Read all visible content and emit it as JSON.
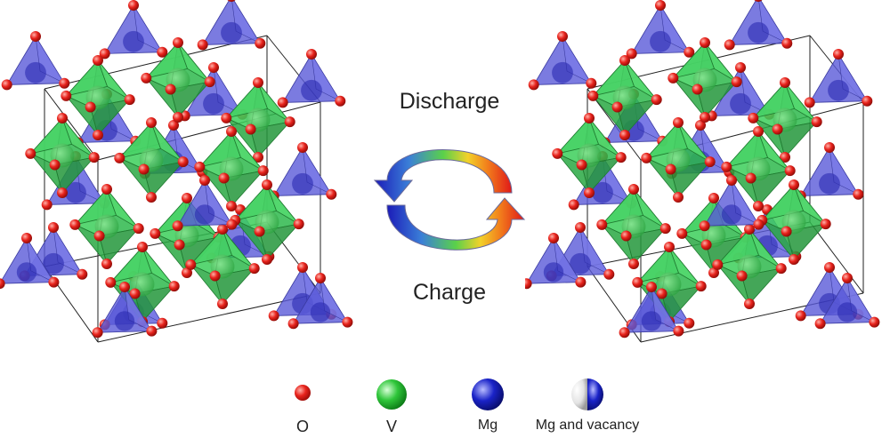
{
  "cycle": {
    "top_label": "Discharge",
    "bottom_label": "Charge"
  },
  "legend": {
    "items": [
      {
        "label": "O",
        "color": "#e8231c"
      },
      {
        "label": "V",
        "color": "#2fc63a"
      },
      {
        "label": "Mg",
        "color": "#1a23c8"
      },
      {
        "label": "Mg and vacancy",
        "color": "#1a23c8"
      }
    ]
  },
  "colors": {
    "oxygen": "#e8231c",
    "vanadium_polyhedra": "#2ecc55",
    "magnesium_polyhedra": "#5a5ad8",
    "arrow_gradient": [
      "#1b1bb8",
      "#2e8fd6",
      "#4fd04a",
      "#f0d020",
      "#f08a1a",
      "#e01818"
    ]
  }
}
